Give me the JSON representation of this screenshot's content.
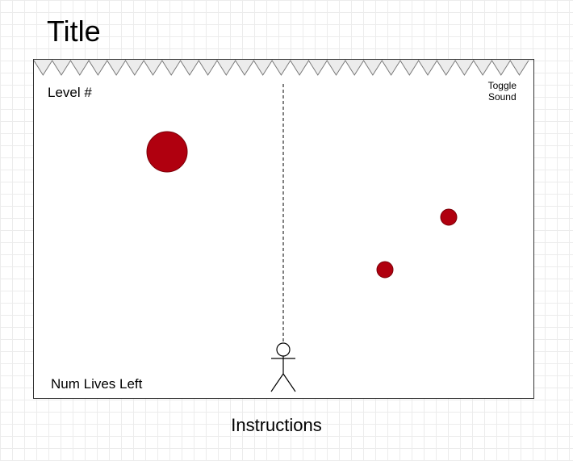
{
  "header": {
    "title": "Title"
  },
  "hud": {
    "level_label": "Level #",
    "toggle_sound_line1": "Toggle",
    "toggle_sound_line2": "Sound",
    "lives_label": "Num Lives Left"
  },
  "footer": {
    "instructions_label": "Instructions"
  },
  "colors": {
    "ball": "#b0000f",
    "ball_stroke": "#7a0008",
    "spike_fill": "#ececec",
    "spike_stroke": "#777777",
    "ink": "#000000"
  },
  "icons": {
    "spikes": "spike-row-icon",
    "player": "stick-figure-icon"
  }
}
